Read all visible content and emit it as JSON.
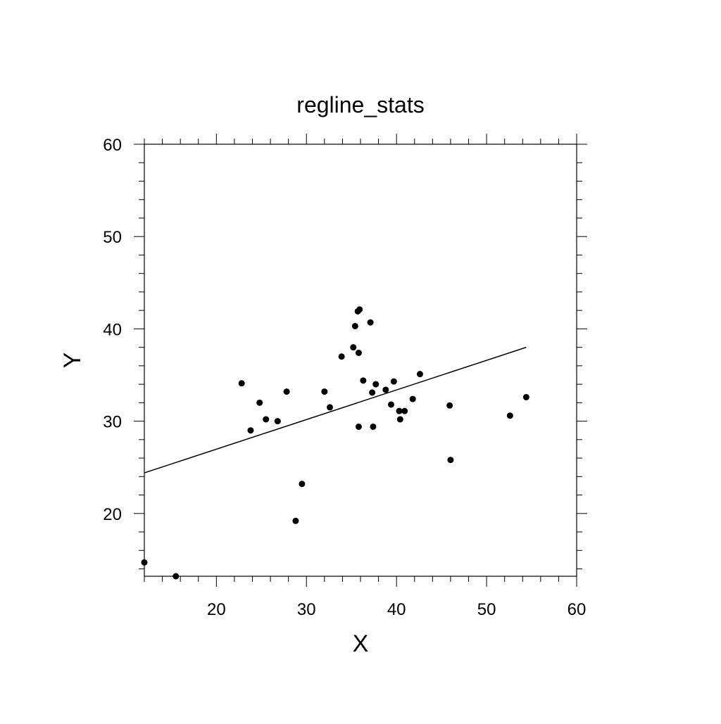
{
  "chart_data": {
    "type": "scatter",
    "title": "regline_stats",
    "xlabel": "X",
    "ylabel": "Y",
    "xlim": [
      12,
      60
    ],
    "ylim": [
      13.2,
      60
    ],
    "x_ticks": [
      20,
      30,
      40,
      50,
      60
    ],
    "y_ticks": [
      20,
      30,
      40,
      50,
      60
    ],
    "grid": false,
    "legend": "none",
    "colors": {
      "points": "#000000",
      "line": "#000000",
      "axes": "#000000"
    },
    "points": [
      {
        "x": 12.0,
        "y": 14.7
      },
      {
        "x": 15.5,
        "y": 13.2
      },
      {
        "x": 22.8,
        "y": 34.1
      },
      {
        "x": 23.8,
        "y": 29.0
      },
      {
        "x": 24.8,
        "y": 32.0
      },
      {
        "x": 25.5,
        "y": 30.2
      },
      {
        "x": 26.8,
        "y": 30.0
      },
      {
        "x": 27.8,
        "y": 33.2
      },
      {
        "x": 28.8,
        "y": 19.2
      },
      {
        "x": 29.5,
        "y": 23.2
      },
      {
        "x": 32.0,
        "y": 33.2
      },
      {
        "x": 32.6,
        "y": 31.5
      },
      {
        "x": 33.9,
        "y": 37.0
      },
      {
        "x": 35.2,
        "y": 38.0
      },
      {
        "x": 35.4,
        "y": 40.3
      },
      {
        "x": 35.7,
        "y": 41.9
      },
      {
        "x": 35.9,
        "y": 42.1
      },
      {
        "x": 35.8,
        "y": 37.4
      },
      {
        "x": 35.8,
        "y": 29.4
      },
      {
        "x": 36.3,
        "y": 34.4
      },
      {
        "x": 37.1,
        "y": 40.7
      },
      {
        "x": 37.3,
        "y": 33.1
      },
      {
        "x": 37.4,
        "y": 29.4
      },
      {
        "x": 37.7,
        "y": 34.0
      },
      {
        "x": 38.8,
        "y": 33.4
      },
      {
        "x": 39.4,
        "y": 31.8
      },
      {
        "x": 39.7,
        "y": 34.3
      },
      {
        "x": 40.3,
        "y": 31.1
      },
      {
        "x": 40.4,
        "y": 30.2
      },
      {
        "x": 40.9,
        "y": 31.1
      },
      {
        "x": 41.8,
        "y": 32.4
      },
      {
        "x": 42.6,
        "y": 35.1
      },
      {
        "x": 45.9,
        "y": 31.7
      },
      {
        "x": 46.0,
        "y": 25.8
      },
      {
        "x": 52.6,
        "y": 30.6
      },
      {
        "x": 54.4,
        "y": 32.6
      }
    ],
    "regression_line": {
      "x": [
        12.0,
        54.4
      ],
      "y": [
        24.4,
        38.0
      ]
    }
  }
}
